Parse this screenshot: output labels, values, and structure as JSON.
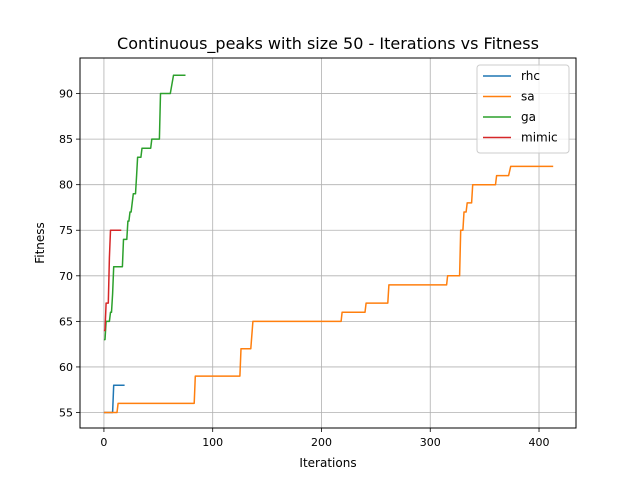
{
  "chart_data": {
    "type": "line",
    "title": "Continuous_peaks with size 50 - Iterations vs Fitness",
    "xlabel": "Iterations",
    "ylabel": "Fitness",
    "xlim": [
      -22,
      434
    ],
    "ylim": [
      53.3,
      93.9
    ],
    "xticks": [
      0,
      100,
      200,
      300,
      400
    ],
    "yticks": [
      55,
      60,
      65,
      70,
      75,
      80,
      85,
      90
    ],
    "grid": true,
    "legend_position": "top-right",
    "colors": {
      "rhc": "#1f77b4",
      "sa": "#ff7f0e",
      "ga": "#2ca02c",
      "mimic": "#d62728"
    },
    "series": [
      {
        "name": "rhc",
        "color": "#1f77b4",
        "points": [
          [
            0,
            55
          ],
          [
            8,
            55
          ],
          [
            9,
            58
          ],
          [
            19,
            58
          ]
        ]
      },
      {
        "name": "sa",
        "color": "#ff7f0e",
        "points": [
          [
            0,
            55
          ],
          [
            12,
            55
          ],
          [
            13,
            56
          ],
          [
            83,
            56
          ],
          [
            84,
            59
          ],
          [
            125,
            59
          ],
          [
            126,
            62
          ],
          [
            135,
            62
          ],
          [
            137,
            65
          ],
          [
            218,
            65
          ],
          [
            219,
            66
          ],
          [
            240,
            66
          ],
          [
            241,
            67
          ],
          [
            261,
            67
          ],
          [
            262,
            69
          ],
          [
            315,
            69
          ],
          [
            316,
            70
          ],
          [
            327,
            70
          ],
          [
            328,
            75
          ],
          [
            330,
            75
          ],
          [
            331,
            77
          ],
          [
            333,
            77
          ],
          [
            334,
            78
          ],
          [
            338,
            78
          ],
          [
            339,
            80
          ],
          [
            360,
            80
          ],
          [
            361,
            81
          ],
          [
            372,
            81
          ],
          [
            374,
            82
          ],
          [
            413,
            82
          ]
        ]
      },
      {
        "name": "ga",
        "color": "#2ca02c",
        "points": [
          [
            0,
            63
          ],
          [
            1,
            63
          ],
          [
            2,
            65
          ],
          [
            5,
            65
          ],
          [
            6,
            66
          ],
          [
            7,
            66
          ],
          [
            8,
            68
          ],
          [
            9,
            71
          ],
          [
            17,
            71
          ],
          [
            18,
            74
          ],
          [
            21,
            74
          ],
          [
            22,
            76
          ],
          [
            23,
            76
          ],
          [
            24,
            77
          ],
          [
            25,
            77
          ],
          [
            26,
            78
          ],
          [
            27,
            79
          ],
          [
            29,
            79
          ],
          [
            30,
            81
          ],
          [
            31,
            83
          ],
          [
            34,
            83
          ],
          [
            35,
            84
          ],
          [
            43,
            84
          ],
          [
            44,
            85
          ],
          [
            51,
            85
          ],
          [
            52,
            90
          ],
          [
            61,
            90
          ],
          [
            64,
            92
          ],
          [
            75,
            92
          ]
        ]
      },
      {
        "name": "mimic",
        "color": "#d62728",
        "points": [
          [
            0,
            64
          ],
          [
            1,
            64
          ],
          [
            2,
            67
          ],
          [
            4,
            67
          ],
          [
            5,
            72
          ],
          [
            6,
            75
          ],
          [
            16,
            75
          ]
        ]
      }
    ]
  }
}
